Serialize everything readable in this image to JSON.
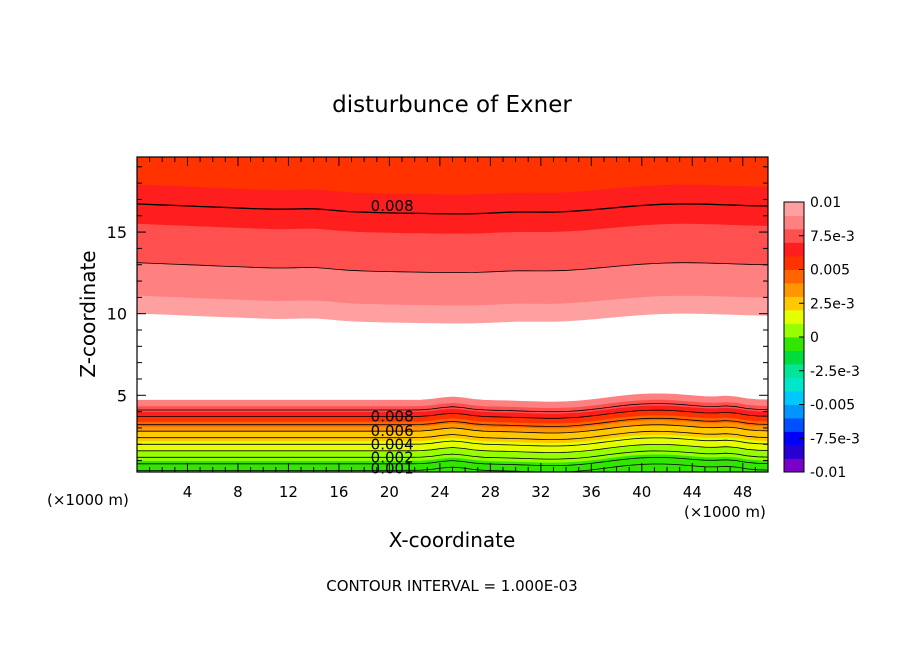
{
  "chart_data": {
    "type": "contour",
    "title": "disturbunce of Exner",
    "xlabel": "X-coordinate",
    "ylabel": "Z-coordinate",
    "x_unit_left": "(×1000 m)",
    "x_unit_right": "(×1000 m)",
    "footer": "CONTOUR INTERVAL = 1.000E-03",
    "xlim": [
      0,
      50
    ],
    "ylim": [
      0.3,
      19.6
    ],
    "x_ticks": [
      4,
      8,
      12,
      16,
      20,
      24,
      28,
      32,
      36,
      40,
      44,
      48
    ],
    "x_tick_labels": [
      "4",
      "8",
      "12",
      "16",
      "20",
      "24",
      "28",
      "32",
      "36",
      "40",
      "44",
      "48"
    ],
    "y_ticks": [
      5,
      10,
      15
    ],
    "y_tick_labels": [
      "5",
      "10",
      "15"
    ],
    "contour_interval": 0.001,
    "contour_labels": [
      {
        "text": "0.008",
        "x": 18,
        "z": 16.6
      },
      {
        "text": "0.008",
        "x": 18,
        "z": 3.7
      },
      {
        "text": "0.006",
        "x": 18,
        "z": 2.8
      },
      {
        "text": "0.004",
        "x": 18,
        "z": 2.0
      },
      {
        "text": "0.002",
        "x": 18,
        "z": 1.2
      },
      {
        "text": "0.001",
        "x": 18,
        "z": 0.5
      }
    ],
    "colorbar": {
      "min": -0.01,
      "max": 0.01,
      "tick_values": [
        0.01,
        0.0075,
        0.005,
        0.0025,
        0,
        -0.0025,
        -0.005,
        -0.0075,
        -0.01
      ],
      "tick_labels": [
        "0.01",
        "7.5e-3",
        "0.005",
        "2.5e-3",
        "0",
        "-2.5e-3",
        "-0.005",
        "-7.5e-3",
        "-0.01"
      ],
      "colors": [
        "#7b00c8",
        "#2800d2",
        "#0000ff",
        "#0050ff",
        "#0096ff",
        "#00c8ff",
        "#00e6c8",
        "#00e696",
        "#00dc3c",
        "#32e600",
        "#96ff00",
        "#e6ff00",
        "#ffc800",
        "#ff9600",
        "#ff6400",
        "#ff3200",
        "#ff1e1e",
        "#ff5050",
        "#ff8080",
        "#ffa0a0"
      ]
    }
  }
}
